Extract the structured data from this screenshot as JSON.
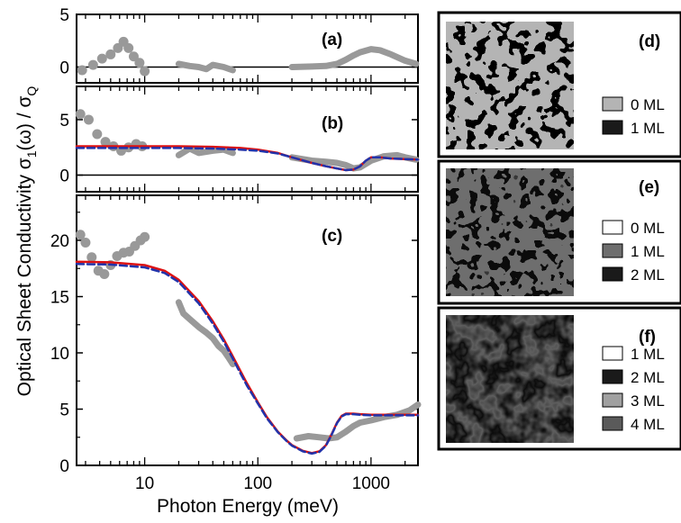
{
  "figure": {
    "ylabel": "Optical Sheet Conductivity σ₁(ω) / σQ",
    "ylabel_main": "Optical Sheet Conductivity σ",
    "ylabel_sub1": "1",
    "ylabel_mid": "(ω) / σ",
    "ylabel_subQ": "Q",
    "xlabel": "Photon Energy (meV)"
  },
  "chart_data": [
    {
      "panel": "(a)",
      "type": "scatter",
      "xscale": "log",
      "xlim": [
        2.5,
        2600
      ],
      "ylim": [
        -1.5,
        5
      ],
      "yticks": [
        0,
        5
      ],
      "ytick_labels": [
        "0",
        "5"
      ],
      "baseline": 0,
      "series": [
        {
          "color": "#999999",
          "marker": "dot",
          "x": [
            2.8,
            3.5,
            4.2,
            5.0,
            5.8,
            6.5,
            7.2,
            8.0,
            9.0,
            10.0
          ],
          "y": [
            -0.3,
            0.2,
            0.8,
            1.2,
            1.8,
            2.4,
            1.8,
            1.0,
            0.4,
            -0.4
          ]
        },
        {
          "color": "#999999",
          "marker": "line",
          "x": [
            20,
            25,
            30,
            35,
            40,
            50,
            60
          ],
          "y": [
            0.3,
            0.1,
            0.0,
            -0.2,
            0.2,
            0.0,
            -0.3
          ]
        },
        {
          "color": "#999999",
          "marker": "line",
          "x": [
            200,
            300,
            400,
            500,
            600,
            700,
            800,
            1000,
            1200,
            1500,
            2000,
            2500
          ],
          "y": [
            0.0,
            0.05,
            0.1,
            0.3,
            0.7,
            1.1,
            1.4,
            1.7,
            1.6,
            1.2,
            0.6,
            0.3
          ]
        }
      ]
    },
    {
      "panel": "(b)",
      "type": "line",
      "xscale": "log",
      "xlim": [
        2.5,
        2600
      ],
      "ylim": [
        -1.5,
        8
      ],
      "yticks": [
        0,
        5
      ],
      "ytick_labels": [
        "0",
        "5"
      ],
      "baseline": 0,
      "series": [
        {
          "color": "#999999",
          "marker": "dot",
          "x": [
            2.7,
            3.2,
            3.8,
            4.5,
            5.3,
            6.2,
            7.2,
            8.4,
            9.5
          ],
          "y": [
            5.5,
            5.0,
            3.7,
            3.0,
            2.6,
            2.2,
            2.5,
            2.8,
            2.6
          ]
        },
        {
          "color": "#999999",
          "marker": "line",
          "x": [
            20,
            25,
            30,
            40,
            50,
            60
          ],
          "y": [
            1.8,
            2.4,
            2.0,
            2.2,
            2.3,
            2.0
          ]
        },
        {
          "color": "#999999",
          "marker": "line",
          "x": [
            200,
            300,
            400,
            500,
            600,
            700,
            800,
            1000,
            1300,
            1700,
            2000,
            2500
          ],
          "y": [
            1.6,
            1.3,
            1.2,
            1.1,
            0.9,
            0.6,
            0.7,
            1.3,
            1.7,
            1.8,
            1.6,
            1.4
          ]
        },
        {
          "color": "#dd1111",
          "marker": "curve",
          "x": [
            2.5,
            5,
            10,
            20,
            40,
            70,
            100,
            150,
            200,
            300,
            400,
            500,
            600,
            700,
            800,
            900,
            1000,
            1200,
            1500,
            2000,
            2600
          ],
          "y": [
            2.6,
            2.6,
            2.6,
            2.6,
            2.55,
            2.45,
            2.3,
            2.0,
            1.6,
            1.1,
            0.8,
            0.6,
            0.45,
            0.5,
            0.8,
            1.3,
            1.6,
            1.6,
            1.5,
            1.45,
            1.4
          ]
        },
        {
          "color": "#2233aa",
          "marker": "dashed",
          "x": [
            2.5,
            5,
            10,
            20,
            40,
            70,
            100,
            150,
            200,
            300,
            400,
            500,
            600,
            700,
            800,
            900,
            1000,
            1200,
            1500,
            2000,
            2600
          ],
          "y": [
            2.45,
            2.45,
            2.45,
            2.45,
            2.4,
            2.3,
            2.2,
            1.95,
            1.6,
            1.1,
            0.8,
            0.6,
            0.45,
            0.5,
            0.8,
            1.3,
            1.6,
            1.6,
            1.5,
            1.45,
            1.4
          ]
        }
      ]
    },
    {
      "panel": "(c)",
      "type": "line",
      "xscale": "log",
      "xlim": [
        2.5,
        2600
      ],
      "ylim": [
        0,
        24
      ],
      "yticks": [
        0,
        5,
        10,
        15,
        20
      ],
      "ytick_labels": [
        "0",
        "5",
        "10",
        "15",
        "20"
      ],
      "xticks": [
        10,
        100,
        1000
      ],
      "xtick_labels": [
        "10",
        "100",
        "1000"
      ],
      "series": [
        {
          "color": "#999999",
          "marker": "dot",
          "x": [
            2.7,
            3.0,
            3.4,
            3.9,
            4.4,
            5.0,
            5.7,
            6.5,
            7.3,
            8.2,
            9.2,
            10.0
          ],
          "y": [
            20.5,
            19.8,
            18.5,
            17.3,
            17.0,
            17.8,
            18.6,
            18.9,
            19.0,
            19.5,
            20.0,
            20.3
          ]
        },
        {
          "color": "#999999",
          "marker": "line",
          "x": [
            20,
            22,
            25,
            30,
            35,
            40,
            45,
            50,
            55,
            60
          ],
          "y": [
            14.5,
            13.5,
            13.0,
            12.3,
            11.8,
            11.3,
            10.6,
            10.2,
            9.6,
            9.0
          ]
        },
        {
          "color": "#999999",
          "marker": "line",
          "x": [
            220,
            280,
            350,
            420,
            500,
            600,
            700,
            800,
            1000,
            1300,
            1700,
            2200,
            2600
          ],
          "y": [
            2.4,
            2.6,
            2.5,
            2.4,
            2.5,
            3.0,
            3.5,
            3.8,
            4.0,
            4.3,
            4.5,
            4.9,
            5.4
          ]
        },
        {
          "color": "#dd1111",
          "marker": "curve",
          "x": [
            2.5,
            5,
            10,
            15,
            20,
            30,
            40,
            50,
            60,
            70,
            80,
            100,
            120,
            150,
            180,
            200,
            250,
            300,
            350,
            400,
            450,
            500,
            550,
            600,
            700,
            800,
            1000,
            1500,
            2000,
            2600
          ],
          "y": [
            18.1,
            18.05,
            17.8,
            17.3,
            16.5,
            14.6,
            12.8,
            11.2,
            9.7,
            8.4,
            7.3,
            5.6,
            4.3,
            3.0,
            2.2,
            1.8,
            1.3,
            1.1,
            1.25,
            1.8,
            2.8,
            3.8,
            4.4,
            4.6,
            4.6,
            4.55,
            4.5,
            4.5,
            4.5,
            4.5
          ]
        },
        {
          "color": "#2233aa",
          "marker": "dashed",
          "x": [
            2.5,
            5,
            10,
            15,
            20,
            30,
            40,
            50,
            60,
            70,
            80,
            100,
            120,
            150,
            180,
            200,
            250,
            300,
            350,
            400,
            450,
            500,
            550,
            600,
            700,
            800,
            1000,
            1500,
            2000,
            2600
          ],
          "y": [
            17.9,
            17.85,
            17.6,
            17.1,
            16.3,
            14.4,
            12.6,
            11.0,
            9.5,
            8.2,
            7.1,
            5.5,
            4.2,
            2.95,
            2.15,
            1.75,
            1.25,
            1.05,
            1.2,
            1.75,
            2.75,
            3.75,
            4.35,
            4.55,
            4.55,
            4.5,
            4.45,
            4.45,
            4.45,
            4.45
          ]
        }
      ]
    }
  ],
  "insets": [
    {
      "label": "(d)",
      "legend": [
        {
          "text": "0 ML",
          "swatch": "#b4b4b4"
        },
        {
          "text": "1 ML",
          "swatch": "#1a1a1a"
        }
      ]
    },
    {
      "label": "(e)",
      "legend": [
        {
          "text": "0 ML",
          "swatch": "#ffffff"
        },
        {
          "text": "1 ML",
          "swatch": "#6e6e6e"
        },
        {
          "text": "2 ML",
          "swatch": "#1a1a1a"
        }
      ]
    },
    {
      "label": "(f)",
      "legend": [
        {
          "text": "1 ML",
          "swatch": "#ffffff"
        },
        {
          "text": "2 ML",
          "swatch": "#1a1a1a"
        },
        {
          "text": "3 ML",
          "swatch": "#a0a0a0"
        },
        {
          "text": "4 ML",
          "swatch": "#5a5a5a"
        }
      ]
    }
  ]
}
